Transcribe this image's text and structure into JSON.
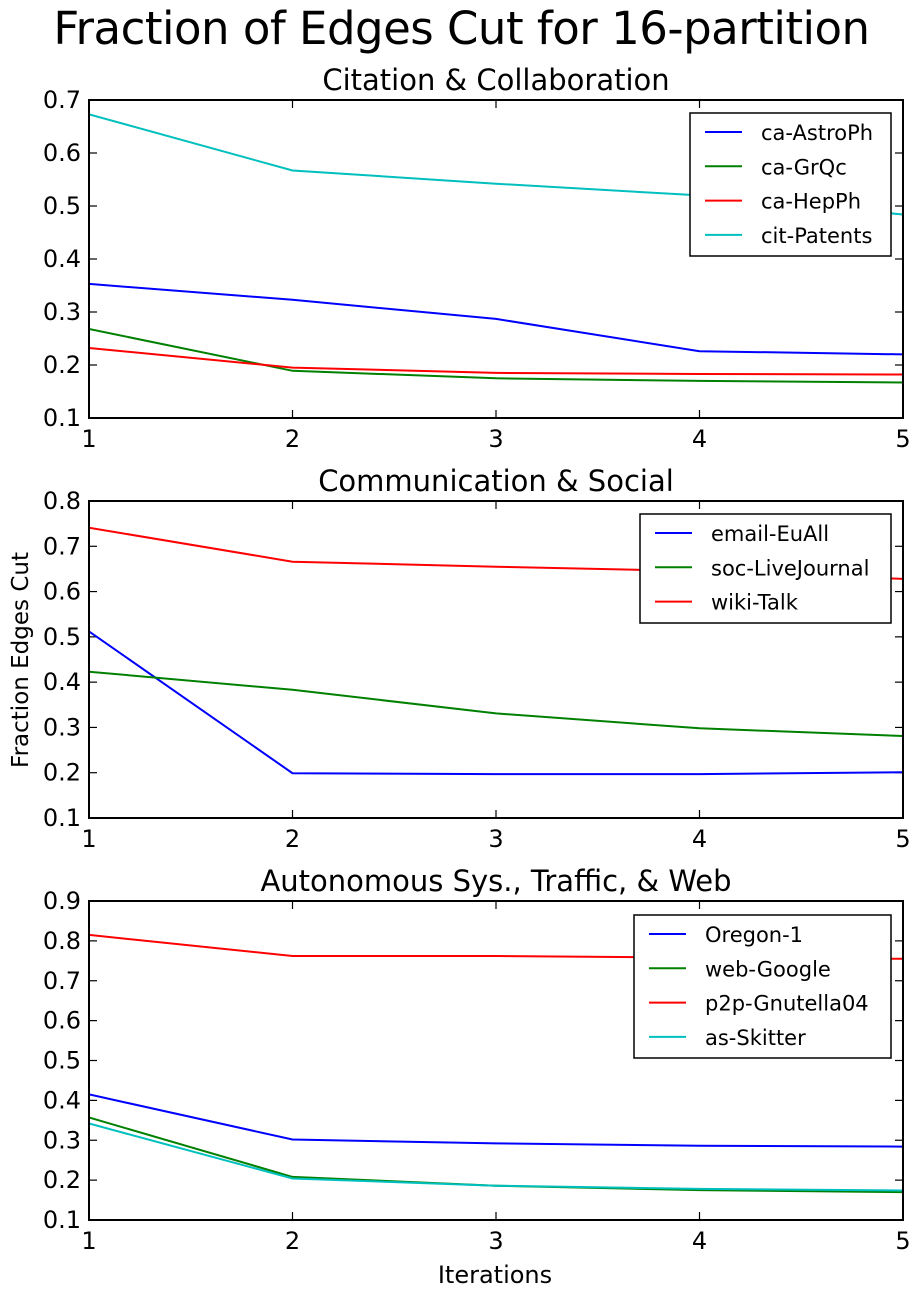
{
  "figure": {
    "title": "Fraction of Edges Cut for 16-partition",
    "ylabel": "Fraction Edges Cut",
    "xlabel": "Iterations"
  },
  "chart_data": [
    {
      "type": "line",
      "title": "Citation & Collaboration",
      "xlim": [
        1,
        5
      ],
      "ylim": [
        0.1,
        0.7
      ],
      "x": [
        1,
        2,
        3,
        4,
        5
      ],
      "xticks": [
        "1",
        "2",
        "3",
        "4",
        "5"
      ],
      "yticks": [
        "0.1",
        "0.2",
        "0.3",
        "0.4",
        "0.5",
        "0.6",
        "0.7"
      ],
      "legend_position": "top-right",
      "grid": false,
      "series": [
        {
          "name": "ca-AstroPh",
          "color": "#0000ff",
          "values": [
            0.353,
            0.323,
            0.287,
            0.226,
            0.22
          ]
        },
        {
          "name": "ca-GrQc",
          "color": "#008000",
          "values": [
            0.268,
            0.189,
            0.175,
            0.17,
            0.167
          ]
        },
        {
          "name": "ca-HepPh",
          "color": "#ff0000",
          "values": [
            0.232,
            0.195,
            0.185,
            0.183,
            0.182
          ]
        },
        {
          "name": "cit-Patents",
          "color": "#00bfbf",
          "values": [
            0.673,
            0.567,
            0.542,
            0.52,
            0.484
          ]
        }
      ]
    },
    {
      "type": "line",
      "title": "Communication & Social",
      "xlim": [
        1,
        5
      ],
      "ylim": [
        0.1,
        0.8
      ],
      "x": [
        1,
        2,
        3,
        4,
        5
      ],
      "xticks": [
        "1",
        "2",
        "3",
        "4",
        "5"
      ],
      "yticks": [
        "0.1",
        "0.2",
        "0.3",
        "0.4",
        "0.5",
        "0.6",
        "0.7",
        "0.8"
      ],
      "legend_position": "top-right",
      "grid": false,
      "series": [
        {
          "name": "email-EuAll",
          "color": "#0000ff",
          "values": [
            0.512,
            0.199,
            0.197,
            0.197,
            0.201
          ]
        },
        {
          "name": "soc-LiveJournal",
          "color": "#008000",
          "values": [
            0.423,
            0.383,
            0.331,
            0.298,
            0.281
          ]
        },
        {
          "name": "wiki-Talk",
          "color": "#ff0000",
          "values": [
            0.741,
            0.666,
            0.655,
            0.645,
            0.628
          ]
        }
      ]
    },
    {
      "type": "line",
      "title": "Autonomous Sys., Traffic, & Web",
      "xlim": [
        1,
        5
      ],
      "ylim": [
        0.1,
        0.9
      ],
      "x": [
        1,
        2,
        3,
        4,
        5
      ],
      "xticks": [
        "1",
        "2",
        "3",
        "4",
        "5"
      ],
      "yticks": [
        "0.1",
        "0.2",
        "0.3",
        "0.4",
        "0.5",
        "0.6",
        "0.7",
        "0.8",
        "0.9"
      ],
      "legend_position": "top-right",
      "grid": false,
      "series": [
        {
          "name": "Oregon-1",
          "color": "#0000ff",
          "values": [
            0.415,
            0.302,
            0.292,
            0.286,
            0.284
          ]
        },
        {
          "name": "web-Google",
          "color": "#008000",
          "values": [
            0.357,
            0.208,
            0.186,
            0.175,
            0.17
          ]
        },
        {
          "name": "p2p-Gnutella04",
          "color": "#ff0000",
          "values": [
            0.815,
            0.762,
            0.762,
            0.758,
            0.755
          ]
        },
        {
          "name": "as-Skitter",
          "color": "#00bfbf",
          "values": [
            0.342,
            0.204,
            0.186,
            0.178,
            0.174
          ]
        }
      ]
    }
  ]
}
